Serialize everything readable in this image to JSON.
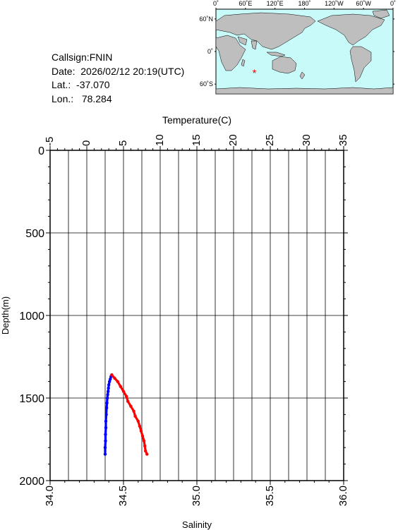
{
  "station": {
    "callsign_label": "Callsign:",
    "callsign": "FNIN",
    "date_label": "Date:",
    "date": "2026/02/12 20:19(UTC)",
    "lat_label": "Lat.:",
    "lat": "-37.070",
    "lon_label": "Lon.:",
    "lon": "78.284"
  },
  "map": {
    "lon_ticks": [
      "0˚",
      "60˚E",
      "120˚E",
      "180˚",
      "120˚W",
      "60˚W",
      "0˚"
    ],
    "lat_ticks": [
      "60˚N",
      "0˚",
      "60˚S"
    ],
    "station_marker": {
      "lon": 78.284,
      "lat": -37.07,
      "symbol": "*"
    },
    "ocean_color": "#c8fafa",
    "land_color": "#bebebe",
    "marker_color": "#ff0000"
  },
  "chart_data": {
    "type": "line",
    "top_axis_label": "Temperature(C)",
    "bottom_axis_label": "Salinity",
    "left_axis_label": "Depth(m)",
    "temperature_ticks": [
      "-5",
      "0",
      "5",
      "10",
      "15",
      "20",
      "25",
      "30",
      "35"
    ],
    "salinity_ticks": [
      "34.0",
      "34.5",
      "35.0",
      "35.5",
      "36.0"
    ],
    "depth_ticks": [
      "0",
      "500",
      "1000",
      "1500",
      "2000"
    ],
    "temperature_range": [
      -5,
      35
    ],
    "salinity_range": [
      34.0,
      36.0
    ],
    "depth_range": [
      0,
      2000
    ],
    "grid": true,
    "series": [
      {
        "variable": "temperature",
        "color": "#0000ff",
        "depth": [
          1360,
          1370,
          1385,
          1400,
          1420,
          1440,
          1460,
          1480,
          1500,
          1530,
          1560,
          1600,
          1640,
          1680,
          1720,
          1760,
          1800,
          1840
        ],
        "values": [
          3.4,
          3.3,
          3.2,
          3.1,
          3.0,
          2.95,
          2.9,
          2.85,
          2.8,
          2.75,
          2.7,
          2.65,
          2.6,
          2.6,
          2.55,
          2.55,
          2.5,
          2.5
        ]
      },
      {
        "variable": "salinity",
        "color": "#ff0000",
        "depth": [
          1360,
          1380,
          1400,
          1430,
          1460,
          1490,
          1520,
          1550,
          1580,
          1610,
          1640,
          1670,
          1700,
          1730,
          1760,
          1790,
          1820,
          1840
        ],
        "values": [
          34.42,
          34.44,
          34.46,
          34.48,
          34.5,
          34.52,
          34.53,
          34.55,
          34.57,
          34.58,
          34.6,
          34.61,
          34.62,
          34.63,
          34.64,
          34.645,
          34.65,
          34.66
        ]
      }
    ]
  }
}
